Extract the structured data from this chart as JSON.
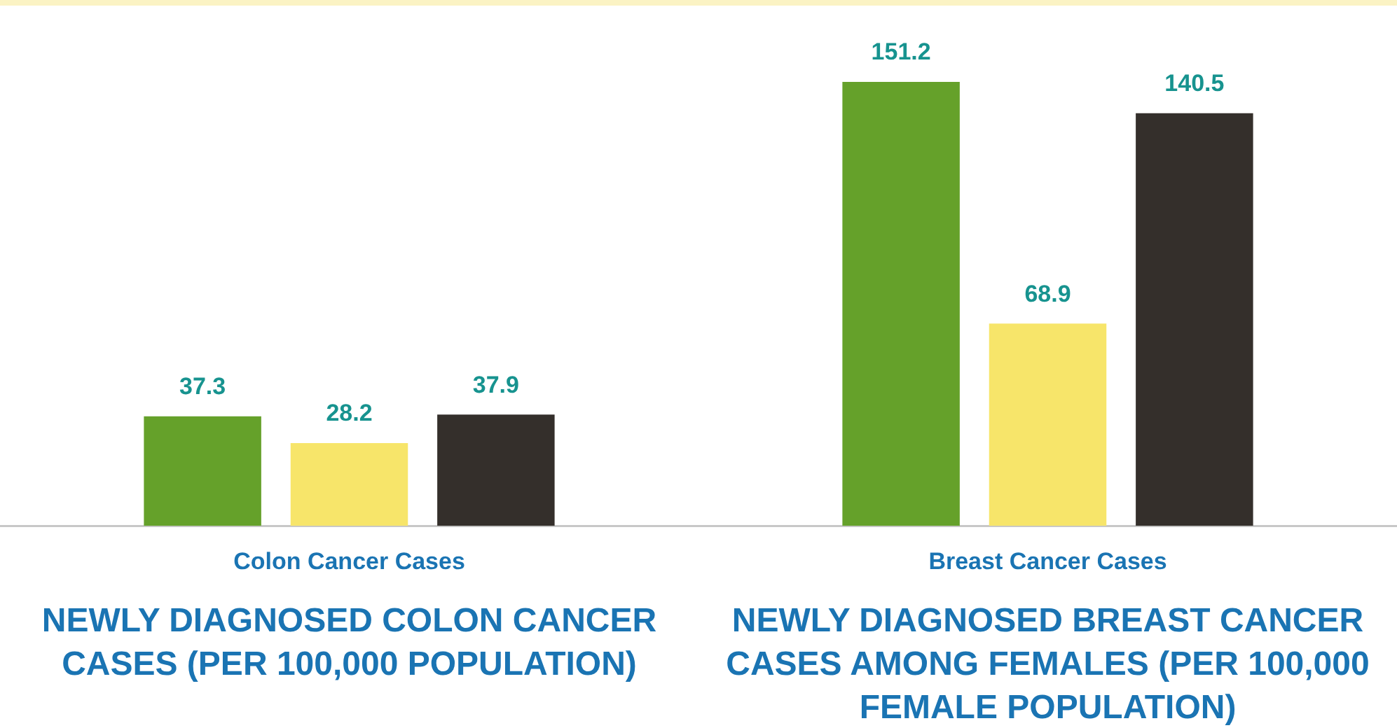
{
  "chart_data": {
    "type": "bar",
    "categories": [
      "Colon Cancer Cases",
      "Breast Cancer Cases"
    ],
    "series": [
      {
        "color": "#65a12a",
        "values": [
          37.3,
          151.2
        ]
      },
      {
        "color": "#f7e56a",
        "values": [
          28.2,
          68.9
        ]
      },
      {
        "color": "#342f2b",
        "values": [
          37.9,
          140.5
        ]
      }
    ],
    "data_labels": true,
    "grid": false,
    "legend": false,
    "annotations": [
      "NEWLY DIAGNOSED COLON CANCER CASES (PER 100,000 POPULATION)",
      "NEWLY DIAGNOSED BREAST CANCER CASES AMONG FEMALES (PER 100,000 FEMALE POPULATION)"
    ]
  }
}
